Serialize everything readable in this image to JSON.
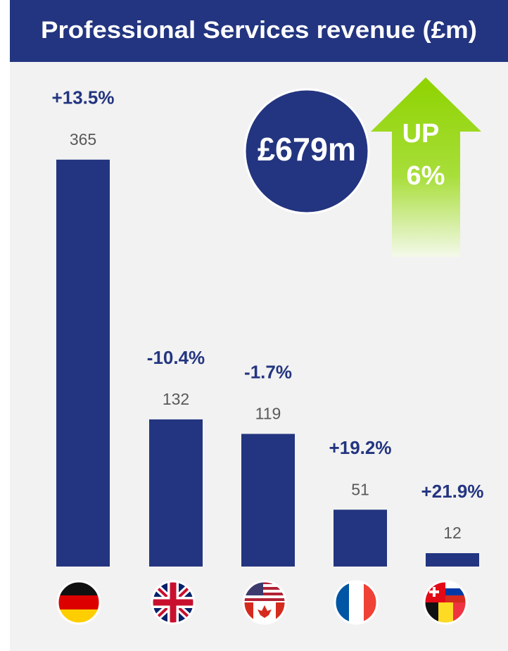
{
  "chart_data": {
    "type": "bar",
    "title": "Professional Services revenue (£m)",
    "categories": [
      null,
      null,
      null,
      null,
      null
    ],
    "values": [
      365,
      132,
      119,
      51,
      12
    ],
    "changes": [
      "+13.5%",
      "-10.4%",
      "-1.7%",
      "+19.2%",
      "+21.9%"
    ],
    "color": "#233580",
    "badge": "£679m",
    "arrow_text": [
      "UP",
      "6%"
    ]
  }
}
